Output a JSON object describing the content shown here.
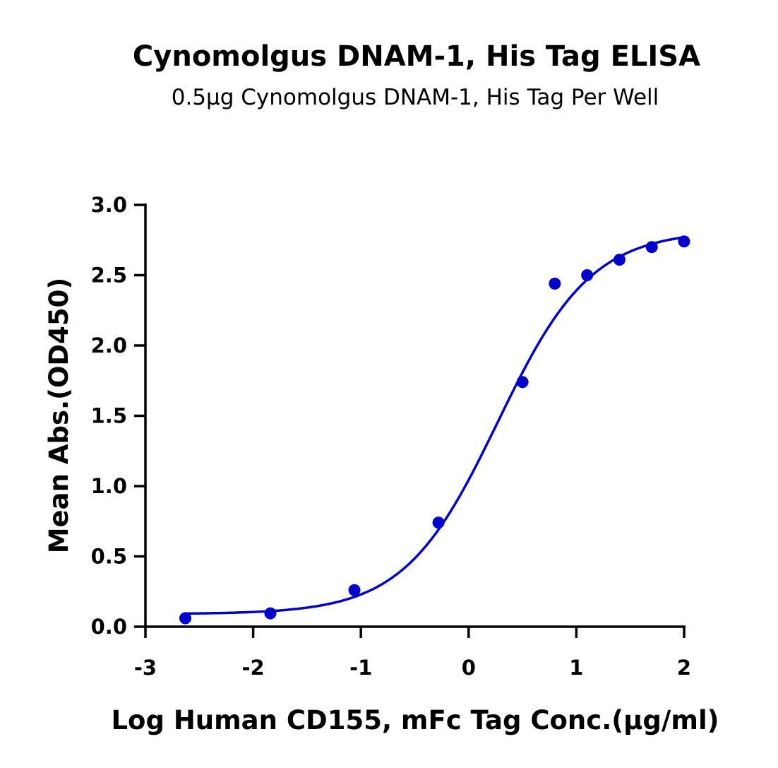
{
  "chart_data": {
    "type": "scatter",
    "title": "Cynomolgus DNAM-1, His Tag ELISA",
    "subtitle": "0.5μg Cynomolgus DNAM-1, His Tag Per Well",
    "xlabel": "Log Human CD155, mFc Tag Conc.(μg/ml)",
    "ylabel": "Mean Abs.(OD450)",
    "xlim": [
      -3,
      2
    ],
    "ylim": [
      0,
      3.0
    ],
    "xticks": [
      "-3",
      "-2",
      "-1",
      "0",
      "1",
      "2"
    ],
    "xtick_values": [
      -3,
      -2,
      -1,
      0,
      1,
      2
    ],
    "yticks": [
      "0.0",
      "0.5",
      "1.0",
      "1.5",
      "2.0",
      "2.5",
      "3.0"
    ],
    "ytick_values": [
      0,
      0.5,
      1.0,
      1.5,
      2.0,
      2.5,
      3.0
    ],
    "grid": false,
    "series": [
      {
        "name": "Cynomolgus DNAM-1, His Tag",
        "color": "#0000cc",
        "x": [
          -2.63,
          -1.84,
          -1.06,
          -0.28,
          0.5,
          0.8,
          1.1,
          1.4,
          1.7,
          2.0
        ],
        "y": [
          0.06,
          0.095,
          0.26,
          0.74,
          1.74,
          2.44,
          2.5,
          2.61,
          2.7,
          2.74
        ],
        "fit": {
          "model": "4PL",
          "bottom": 0.09,
          "top": 2.82,
          "logEC50": 0.27,
          "hill": 1.0
        }
      }
    ]
  }
}
